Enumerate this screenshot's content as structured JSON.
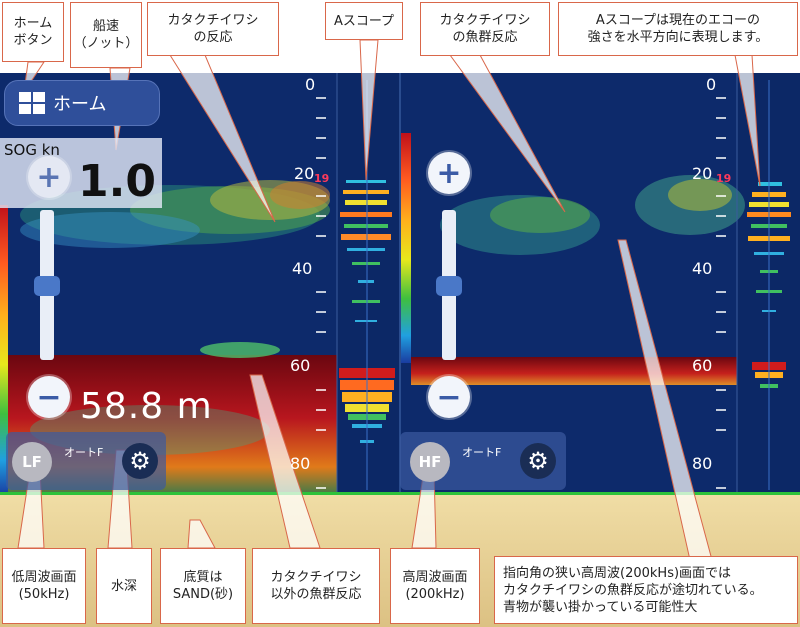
{
  "callouts": {
    "home_button": "ホーム\nボタン",
    "sog_speed": "船速\n（ノット）",
    "anchovy_response": "カタクチイワシ\nの反応",
    "a_scope": "Aスコープ",
    "anchovy_school": "カタクチイワシ\nの魚群反応",
    "a_scope_desc": "Aスコープは現在のエコーの\n強さを水平方向に表現します。",
    "low_freq": "低周波画面\n(50kHz)",
    "depth": "水深",
    "bottom_type": "底質は\nSAND(砂)",
    "other_school": "カタクチイワシ\n以外の魚群反応",
    "high_freq": "高周波画面\n(200kHz)",
    "note": "指向角の狭い高周波(200kHs)画面では\nカタクチイワシの魚群反応が途切れている。\n青物が襲い掛かっている可能性大"
  },
  "ui": {
    "home_label": "ホーム",
    "sog_label": "SOG kn",
    "sog_value": "1.0",
    "depth_value": "58.8 m",
    "plus": "+",
    "minus": "−",
    "gear": "⚙",
    "low_freq_mode": "LF",
    "high_freq_mode": "HF",
    "auto_label": "オートF",
    "depth_ticks": [
      "0",
      "20",
      "40",
      "60",
      "80"
    ],
    "gain_marker": "19"
  },
  "colors": {
    "water": "#0d2a6b",
    "seabed_band": "#a3121a",
    "sediment": "#e3cd8f",
    "callout_border": "#d9674a",
    "accent": "#3b5ba6"
  }
}
